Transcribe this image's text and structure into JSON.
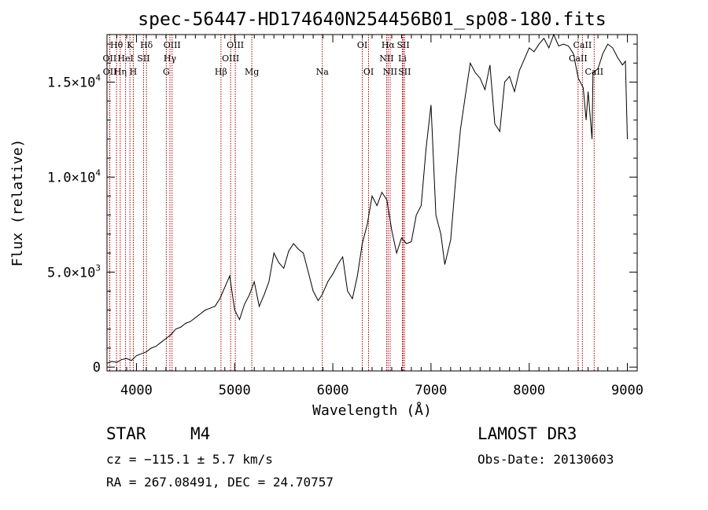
{
  "chart_data": {
    "type": "line",
    "title": "spec-56447-HD174640N254456B01_sp08-180.fits",
    "xlabel": "Wavelength (Å)",
    "ylabel": "Flux (relative)",
    "xlim": [
      3700,
      9100
    ],
    "ylim": [
      -200,
      17500
    ],
    "x_ticks": [
      {
        "value": 4000,
        "label": "4000"
      },
      {
        "value": 5000,
        "label": "5000"
      },
      {
        "value": 6000,
        "label": "6000"
      },
      {
        "value": 7000,
        "label": "7000"
      },
      {
        "value": 8000,
        "label": "8000"
      },
      {
        "value": 9000,
        "label": "9000"
      }
    ],
    "y_ticks": [
      {
        "value": 0,
        "base": "0",
        "exp": ""
      },
      {
        "value": 5000,
        "base": "5.0×10",
        "exp": "3"
      },
      {
        "value": 10000,
        "base": "1.0×10",
        "exp": "4"
      },
      {
        "value": 15000,
        "base": "1.5×10",
        "exp": "4"
      }
    ],
    "line_color": "#000000",
    "marker_color": "#aa0000",
    "spectrum": {
      "name": "flux",
      "x": [
        3700,
        3750,
        3800,
        3850,
        3900,
        3950,
        4000,
        4050,
        4100,
        4150,
        4200,
        4250,
        4300,
        4350,
        4400,
        4450,
        4500,
        4550,
        4600,
        4650,
        4700,
        4750,
        4800,
        4850,
        4900,
        4950,
        5000,
        5050,
        5100,
        5150,
        5200,
        5250,
        5300,
        5350,
        5400,
        5450,
        5500,
        5550,
        5600,
        5650,
        5700,
        5750,
        5800,
        5850,
        5890,
        5950,
        6000,
        6050,
        6100,
        6150,
        6200,
        6250,
        6300,
        6350,
        6400,
        6450,
        6500,
        6550,
        6600,
        6650,
        6700,
        6750,
        6800,
        6850,
        6900,
        6950,
        7000,
        7050,
        7100,
        7140,
        7200,
        7250,
        7300,
        7350,
        7400,
        7450,
        7500,
        7550,
        7600,
        7650,
        7700,
        7750,
        7800,
        7850,
        7900,
        7950,
        8000,
        8050,
        8100,
        8150,
        8200,
        8250,
        8300,
        8350,
        8400,
        8450,
        8500,
        8550,
        8580,
        8600,
        8640,
        8650,
        8700,
        8750,
        8800,
        8850,
        8900,
        8950,
        8980,
        9000
      ],
      "values": [
        200,
        300,
        250,
        400,
        450,
        350,
        600,
        700,
        800,
        1000,
        1100,
        1300,
        1500,
        1700,
        2000,
        2100,
        2300,
        2400,
        2600,
        2800,
        3000,
        3100,
        3200,
        3600,
        4200,
        4800,
        3000,
        2500,
        3300,
        3800,
        4500,
        3200,
        3800,
        4500,
        6000,
        5500,
        5200,
        6100,
        6500,
        6200,
        6000,
        5000,
        4000,
        3500,
        3800,
        4500,
        4900,
        5400,
        5800,
        4000,
        3600,
        4800,
        6500,
        7500,
        9000,
        8500,
        9200,
        8800,
        7200,
        6000,
        6800,
        6500,
        6600,
        8000,
        8500,
        11500,
        13800,
        8000,
        7000,
        5400,
        6700,
        9800,
        12500,
        14300,
        16000,
        15500,
        15200,
        14600,
        15900,
        12800,
        12400,
        15000,
        15300,
        14500,
        15600,
        16200,
        16800,
        16600,
        17000,
        17300,
        16800,
        17500,
        16900,
        17000,
        16900,
        16500,
        15200,
        14700,
        13000,
        14500,
        12000,
        15500,
        15700,
        16500,
        17000,
        16800,
        16300,
        15900,
        16100,
        12000
      ]
    },
    "lines_row1": [
      {
        "w": 3797,
        "label": "Hθ"
      },
      {
        "w": 3934,
        "label": "K"
      },
      {
        "w": 4102,
        "label": "Hδ"
      },
      {
        "w": 4363,
        "label": "OIII"
      },
      {
        "w": 5007,
        "label": "OIII"
      },
      {
        "w": 6300,
        "label": "OI"
      },
      {
        "w": 6563,
        "label": "Hα"
      },
      {
        "w": 6717,
        "label": "SII"
      },
      {
        "w": 8542,
        "label": "CaII"
      }
    ],
    "lines_row2": [
      {
        "w": 3727,
        "label": "OII"
      },
      {
        "w": 3889,
        "label": "HeI"
      },
      {
        "w": 4072,
        "label": "SII"
      },
      {
        "w": 4341,
        "label": "Hγ"
      },
      {
        "w": 4959,
        "label": "OIII"
      },
      {
        "w": 6548,
        "label": "NII"
      },
      {
        "w": 6708,
        "label": "Li"
      },
      {
        "w": 8498,
        "label": "CaII"
      }
    ],
    "lines_row3": [
      {
        "w": 3729,
        "label": "OII"
      },
      {
        "w": 3835,
        "label": "Hη"
      },
      {
        "w": 3968,
        "label": "H"
      },
      {
        "w": 4304,
        "label": "G"
      },
      {
        "w": 4861,
        "label": "Hβ"
      },
      {
        "w": 5175,
        "label": "Mg"
      },
      {
        "w": 5893,
        "label": "Na"
      },
      {
        "w": 6364,
        "label": "OI"
      },
      {
        "w": 6584,
        "label": "NII"
      },
      {
        "w": 6731,
        "label": "SII"
      },
      {
        "w": 8662,
        "label": "CaII"
      }
    ]
  },
  "info": {
    "object_class": "STAR",
    "subclass": "M4",
    "survey": "LAMOST DR3",
    "cz": "cz = −115.1 ± 5.7 km/s",
    "obs_date": "Obs-Date: 20130603",
    "coords": "RA = 267.08491, DEC =  24.70757"
  }
}
